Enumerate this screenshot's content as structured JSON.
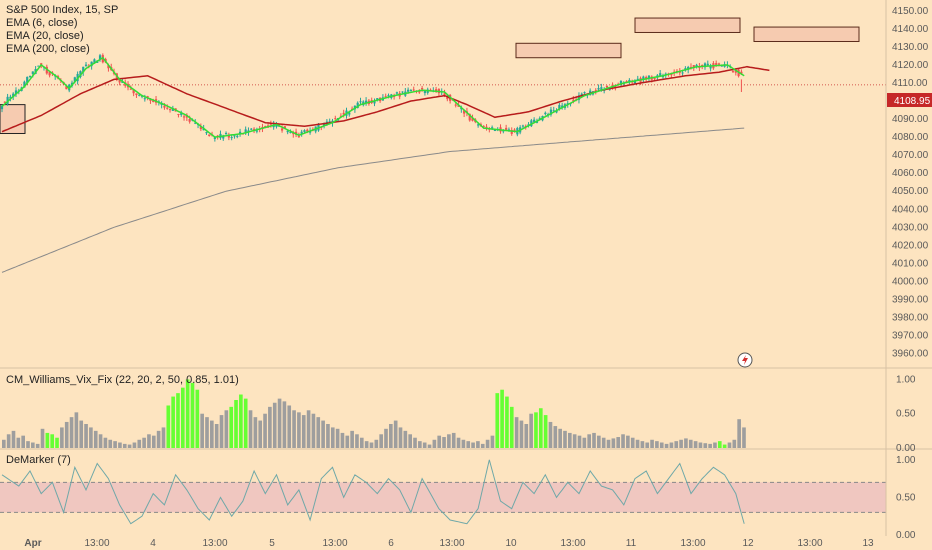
{
  "header": {
    "symbol": "S&P 500 Index, 15, SP",
    "ind1": "EMA (6, close)",
    "ind2": "EMA (20, close)",
    "ind3": "EMA (200, close)"
  },
  "wvf_title": "CM_Williams_Vix_Fix (22, 20, 2, 50, 0.85, 1.01)",
  "dem_title": "DeMarker (7)",
  "price_tag": "4108.95",
  "colors": {
    "bg": "#fde4c0",
    "up": "#26a69a",
    "down": "#ef5350",
    "ema6": "#33dd33",
    "ema20": "#b71c1c",
    "ema200": "#8a8a8a",
    "hist_gray": "#9e9e9e",
    "hist_green": "#66ff33",
    "zone_fill": "#f6cbb0",
    "band": "#f0c7c0"
  },
  "chart_data": [
    {
      "type": "candlestick",
      "title": "S&P 500 Index, 15, SP",
      "ylim": [
        3952,
        4156
      ],
      "y_ticks": [
        4150,
        4140,
        4130,
        4120,
        4110,
        4100,
        4090,
        4080,
        4070,
        4060,
        4050,
        4040,
        4030,
        4020,
        4010,
        4000,
        3990,
        3980,
        3970,
        3960
      ],
      "y_tick_labels": [
        "4150.00",
        "4140.00",
        "4130.00",
        "4120.00",
        "4110.00",
        "4100.00",
        "4090.00",
        "4080.00",
        "4070.00",
        "4060.00",
        "4050.00",
        "4040.00",
        "4030.00",
        "4020.00",
        "4010.00",
        "4000.00",
        "3990.00",
        "3980.00",
        "3970.00",
        "3960.00"
      ],
      "x_tick_labels": [
        "Apr",
        "13:00",
        "4",
        "13:00",
        "5",
        "13:00",
        "6",
        "13:00",
        "10",
        "13:00",
        "11",
        "13:00",
        "12",
        "13:00",
        "13"
      ],
      "ema6_anchors": [
        [
          0,
          4097
        ],
        [
          8,
          4108
        ],
        [
          14,
          4120
        ],
        [
          20,
          4113
        ],
        [
          24,
          4107
        ],
        [
          30,
          4118
        ],
        [
          36,
          4124
        ],
        [
          42,
          4112
        ],
        [
          50,
          4103
        ],
        [
          58,
          4098
        ],
        [
          66,
          4092
        ],
        [
          76,
          4080
        ],
        [
          86,
          4082
        ],
        [
          98,
          4087
        ],
        [
          106,
          4081
        ],
        [
          118,
          4088
        ],
        [
          128,
          4098
        ],
        [
          140,
          4103
        ],
        [
          150,
          4106
        ],
        [
          158,
          4105
        ],
        [
          172,
          4085
        ],
        [
          184,
          4083
        ],
        [
          196,
          4093
        ],
        [
          208,
          4103
        ],
        [
          222,
          4110
        ],
        [
          236,
          4114
        ],
        [
          248,
          4119
        ],
        [
          259,
          4120
        ],
        [
          265,
          4114
        ]
      ],
      "ema20_anchors": [
        [
          0,
          4083
        ],
        [
          14,
          4092
        ],
        [
          28,
          4104
        ],
        [
          40,
          4112
        ],
        [
          52,
          4114
        ],
        [
          66,
          4104
        ],
        [
          80,
          4096
        ],
        [
          94,
          4088
        ],
        [
          108,
          4086
        ],
        [
          122,
          4089
        ],
        [
          134,
          4094
        ],
        [
          146,
          4100
        ],
        [
          158,
          4103
        ],
        [
          166,
          4098
        ],
        [
          176,
          4091
        ],
        [
          188,
          4094
        ],
        [
          200,
          4100
        ],
        [
          214,
          4106
        ],
        [
          228,
          4110
        ],
        [
          244,
          4114
        ],
        [
          256,
          4116
        ],
        [
          266,
          4119
        ],
        [
          274,
          4117
        ]
      ],
      "ema200_anchors": [
        [
          0,
          4005
        ],
        [
          40,
          4030
        ],
        [
          80,
          4050
        ],
        [
          120,
          4063
        ],
        [
          160,
          4072
        ],
        [
          200,
          4077
        ],
        [
          265,
          4085
        ]
      ],
      "zones": [
        [
          4132,
          4124
        ],
        [
          4146,
          4138
        ],
        [
          4141,
          4133
        ]
      ],
      "wick_low_last": 4105
    },
    {
      "type": "bar",
      "title": "CM_Williams_Vix_Fix (22, 20, 2, 50, 0.85, 1.01)",
      "ylim": [
        0,
        1.05
      ],
      "y_tick_labels": [
        "1.00",
        "0.50",
        "0.00"
      ],
      "series": [
        {
          "color": "gray",
          "values": [
            0.12,
            0.2,
            0.25,
            0.15,
            0.18,
            0.1,
            0.08,
            0.06,
            0.28,
            0.22,
            0.2,
            0.15,
            0.3,
            0.38,
            0.45,
            0.52,
            0.4,
            0.35,
            0.3,
            0.25,
            0.2,
            0.15,
            0.12,
            0.1,
            0.08,
            0.06,
            0.05,
            0.08,
            0.12,
            0.15,
            0.2,
            0.18,
            0.25,
            0.3,
            0.62,
            0.75,
            0.8,
            0.88,
            1.0,
            0.95,
            0.85,
            0.5,
            0.45,
            0.4,
            0.35,
            0.48,
            0.55,
            0.6,
            0.7,
            0.78,
            0.72,
            0.55,
            0.45,
            0.4,
            0.5,
            0.6,
            0.66,
            0.72,
            0.68,
            0.62,
            0.55,
            0.52,
            0.48,
            0.55,
            0.5,
            0.45,
            0.4,
            0.35,
            0.3,
            0.28,
            0.22,
            0.18,
            0.25,
            0.2,
            0.15,
            0.1,
            0.08,
            0.12,
            0.2,
            0.28,
            0.35,
            0.4,
            0.3,
            0.25,
            0.2,
            0.15,
            0.1,
            0.08,
            0.05,
            0.12,
            0.18,
            0.16,
            0.2,
            0.22,
            0.15,
            0.12,
            0.1,
            0.08,
            0.1,
            0.06,
            0.12,
            0.18,
            0.8,
            0.85,
            0.75,
            0.6,
            0.45,
            0.4,
            0.35,
            0.5,
            0.52,
            0.58,
            0.48,
            0.38,
            0.32,
            0.28,
            0.25,
            0.22,
            0.2,
            0.18,
            0.15,
            0.2,
            0.22,
            0.18,
            0.15,
            0.12,
            0.14,
            0.16,
            0.2,
            0.18,
            0.15,
            0.12,
            0.1,
            0.08,
            0.12,
            0.1,
            0.08,
            0.06,
            0.08,
            0.1,
            0.12,
            0.14,
            0.12,
            0.1,
            0.08,
            0.07,
            0.06,
            0.08,
            0.1,
            0.05,
            0.08,
            0.12,
            0.42,
            0.3
          ]
        }
      ]
    },
    {
      "type": "line",
      "title": "DeMarker (7)",
      "ylim": [
        0,
        1.05
      ],
      "y_tick_labels": [
        "1.00",
        "0.50",
        "0.00"
      ],
      "band": [
        0.3,
        0.7
      ],
      "anchors": [
        [
          0,
          0.8
        ],
        [
          6,
          0.65
        ],
        [
          10,
          0.85
        ],
        [
          14,
          0.55
        ],
        [
          18,
          0.7
        ],
        [
          22,
          0.3
        ],
        [
          26,
          0.9
        ],
        [
          30,
          0.6
        ],
        [
          34,
          0.95
        ],
        [
          38,
          0.75
        ],
        [
          42,
          0.4
        ],
        [
          46,
          0.15
        ],
        [
          50,
          0.25
        ],
        [
          54,
          0.55
        ],
        [
          58,
          0.4
        ],
        [
          62,
          0.8
        ],
        [
          66,
          0.6
        ],
        [
          70,
          0.35
        ],
        [
          74,
          0.2
        ],
        [
          78,
          0.5
        ],
        [
          82,
          0.25
        ],
        [
          86,
          0.45
        ],
        [
          90,
          0.85
        ],
        [
          94,
          0.55
        ],
        [
          98,
          0.8
        ],
        [
          102,
          0.4
        ],
        [
          106,
          0.6
        ],
        [
          110,
          0.2
        ],
        [
          114,
          0.75
        ],
        [
          118,
          0.9
        ],
        [
          122,
          0.5
        ],
        [
          126,
          0.8
        ],
        [
          130,
          0.7
        ],
        [
          134,
          0.55
        ],
        [
          138,
          0.75
        ],
        [
          142,
          0.6
        ],
        [
          146,
          0.3
        ],
        [
          150,
          0.75
        ],
        [
          156,
          0.35
        ],
        [
          160,
          0.2
        ],
        [
          166,
          0.15
        ],
        [
          170,
          0.35
        ],
        [
          174,
          1.0
        ],
        [
          178,
          0.45
        ],
        [
          182,
          0.35
        ],
        [
          186,
          0.7
        ],
        [
          190,
          0.55
        ],
        [
          194,
          0.8
        ],
        [
          198,
          0.5
        ],
        [
          202,
          0.7
        ],
        [
          206,
          0.55
        ],
        [
          210,
          0.85
        ],
        [
          214,
          0.65
        ],
        [
          218,
          0.6
        ],
        [
          222,
          0.4
        ],
        [
          226,
          0.75
        ],
        [
          230,
          0.85
        ],
        [
          234,
          0.55
        ],
        [
          238,
          0.75
        ],
        [
          242,
          0.95
        ],
        [
          246,
          0.55
        ],
        [
          250,
          0.75
        ],
        [
          254,
          0.9
        ],
        [
          258,
          0.8
        ],
        [
          262,
          0.55
        ],
        [
          265,
          0.15
        ]
      ]
    }
  ]
}
